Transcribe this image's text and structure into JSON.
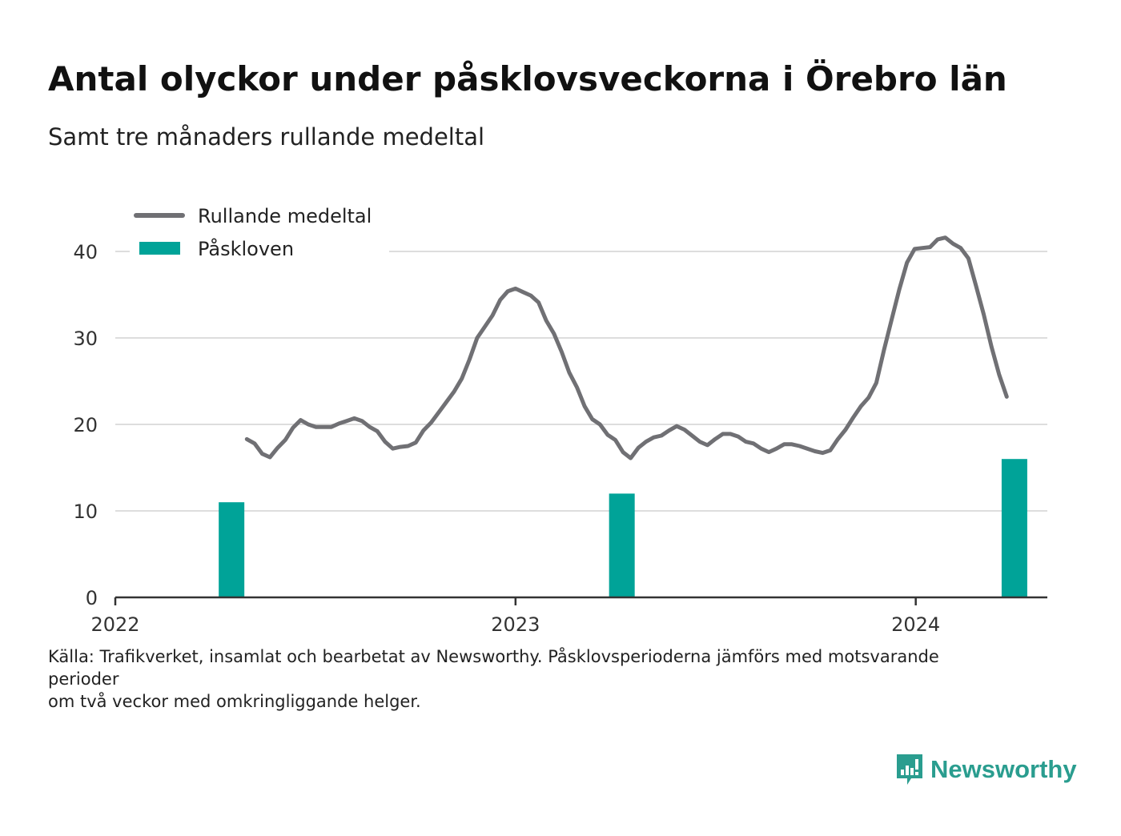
{
  "header": {
    "title": "Antal olyckor under påsklovsveckorna i Örebro län",
    "subtitle": "Samt tre månaders rullande medeltal"
  },
  "legend": {
    "line_label": "Rullande medeltal",
    "bar_label": "Påskloven"
  },
  "footer": {
    "source_lines": [
      "Källa: Trafikverket, insamlat och bearbetat av Newsworthy. Påsklovsperioderna jämförs med motsvarande",
      "perioder",
      "om två veckor med omkringliggande helger."
    ],
    "brand": "Newsworthy"
  },
  "colors": {
    "line": "#707074",
    "bar": "#00a398",
    "grid": "#dddddd",
    "axis": "#333333",
    "brand": "#2a9d8f"
  },
  "chart_data": {
    "type": "bar+line",
    "ylim": [
      0,
      45
    ],
    "yticks": [
      "0",
      "10",
      "20",
      "30",
      "40"
    ],
    "xlim": [
      "2022-01-01",
      "2024-04-30"
    ],
    "xticks": [
      {
        "date": "2022-01-01",
        "label": "2022"
      },
      {
        "date": "2023-01-01",
        "label": "2023"
      },
      {
        "date": "2024-01-01",
        "label": "2024"
      }
    ],
    "grid": true,
    "legend_position": "top-left",
    "series": [
      {
        "name": "Påskloven",
        "type": "bar",
        "points": [
          {
            "date": "2022-04-17",
            "value": 11
          },
          {
            "date": "2023-04-08",
            "value": 12
          },
          {
            "date": "2024-03-31",
            "value": 16
          }
        ]
      },
      {
        "name": "Rullande medeltal",
        "type": "line",
        "points": [
          [
            "2022-05-01",
            18.3
          ],
          [
            "2022-05-08",
            17.8
          ],
          [
            "2022-05-15",
            16.6
          ],
          [
            "2022-05-22",
            16.2
          ],
          [
            "2022-05-29",
            17.3
          ],
          [
            "2022-06-05",
            18.2
          ],
          [
            "2022-06-12",
            19.6
          ],
          [
            "2022-06-19",
            20.5
          ],
          [
            "2022-06-26",
            20.0
          ],
          [
            "2022-07-03",
            19.7
          ],
          [
            "2022-07-10",
            19.7
          ],
          [
            "2022-07-17",
            19.7
          ],
          [
            "2022-07-24",
            20.1
          ],
          [
            "2022-07-31",
            20.4
          ],
          [
            "2022-08-07",
            20.7
          ],
          [
            "2022-08-14",
            20.4
          ],
          [
            "2022-08-21",
            19.7
          ],
          [
            "2022-08-28",
            19.2
          ],
          [
            "2022-09-04",
            18.0
          ],
          [
            "2022-09-11",
            17.2
          ],
          [
            "2022-09-18",
            17.4
          ],
          [
            "2022-09-25",
            17.5
          ],
          [
            "2022-10-02",
            17.9
          ],
          [
            "2022-10-09",
            19.3
          ],
          [
            "2022-10-16",
            20.2
          ],
          [
            "2022-10-23",
            21.4
          ],
          [
            "2022-10-30",
            22.6
          ],
          [
            "2022-11-06",
            23.8
          ],
          [
            "2022-11-13",
            25.3
          ],
          [
            "2022-11-20",
            27.5
          ],
          [
            "2022-11-27",
            30.0
          ],
          [
            "2022-12-04",
            31.3
          ],
          [
            "2022-12-11",
            32.6
          ],
          [
            "2022-12-18",
            34.4
          ],
          [
            "2022-12-25",
            35.4
          ],
          [
            "2023-01-01",
            35.7
          ],
          [
            "2023-01-08",
            35.3
          ],
          [
            "2023-01-15",
            34.9
          ],
          [
            "2023-01-22",
            34.1
          ],
          [
            "2023-01-29",
            32.0
          ],
          [
            "2023-02-05",
            30.5
          ],
          [
            "2023-02-12",
            28.4
          ],
          [
            "2023-02-19",
            26.0
          ],
          [
            "2023-02-26",
            24.3
          ],
          [
            "2023-03-05",
            22.1
          ],
          [
            "2023-03-12",
            20.6
          ],
          [
            "2023-03-19",
            20.0
          ],
          [
            "2023-03-26",
            18.8
          ],
          [
            "2023-04-02",
            18.2
          ],
          [
            "2023-04-09",
            16.8
          ],
          [
            "2023-04-16",
            16.1
          ],
          [
            "2023-04-23",
            17.3
          ],
          [
            "2023-04-30",
            18.0
          ],
          [
            "2023-05-07",
            18.5
          ],
          [
            "2023-05-14",
            18.7
          ],
          [
            "2023-05-21",
            19.3
          ],
          [
            "2023-05-28",
            19.8
          ],
          [
            "2023-06-04",
            19.4
          ],
          [
            "2023-06-11",
            18.7
          ],
          [
            "2023-06-18",
            18.0
          ],
          [
            "2023-06-25",
            17.6
          ],
          [
            "2023-07-02",
            18.3
          ],
          [
            "2023-07-09",
            18.9
          ],
          [
            "2023-07-16",
            18.9
          ],
          [
            "2023-07-23",
            18.6
          ],
          [
            "2023-07-30",
            18.0
          ],
          [
            "2023-08-06",
            17.8
          ],
          [
            "2023-08-13",
            17.2
          ],
          [
            "2023-08-20",
            16.8
          ],
          [
            "2023-08-27",
            17.2
          ],
          [
            "2023-09-03",
            17.7
          ],
          [
            "2023-09-10",
            17.7
          ],
          [
            "2023-09-17",
            17.5
          ],
          [
            "2023-09-24",
            17.2
          ],
          [
            "2023-10-01",
            16.9
          ],
          [
            "2023-10-08",
            16.7
          ],
          [
            "2023-10-15",
            17.0
          ],
          [
            "2023-10-22",
            18.3
          ],
          [
            "2023-10-29",
            19.4
          ],
          [
            "2023-11-05",
            20.8
          ],
          [
            "2023-11-12",
            22.1
          ],
          [
            "2023-11-19",
            23.1
          ],
          [
            "2023-11-26",
            24.8
          ],
          [
            "2023-12-03",
            28.6
          ],
          [
            "2023-12-10",
            32.1
          ],
          [
            "2023-12-17",
            35.6
          ],
          [
            "2023-12-24",
            38.7
          ],
          [
            "2023-12-31",
            40.3
          ],
          [
            "2024-01-07",
            40.4
          ],
          [
            "2024-01-14",
            40.5
          ],
          [
            "2024-01-21",
            41.4
          ],
          [
            "2024-01-28",
            41.6
          ],
          [
            "2024-02-04",
            40.9
          ],
          [
            "2024-02-11",
            40.4
          ],
          [
            "2024-02-18",
            39.2
          ],
          [
            "2024-02-25",
            36.0
          ],
          [
            "2024-03-03",
            32.7
          ],
          [
            "2024-03-10",
            29.0
          ],
          [
            "2024-03-17",
            25.8
          ],
          [
            "2024-03-24",
            23.2
          ]
        ]
      }
    ]
  }
}
